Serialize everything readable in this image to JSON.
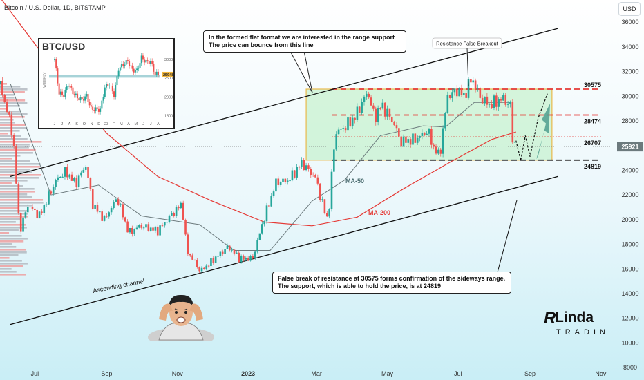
{
  "header": {
    "title": "Bitcoin / U.S. Dollar, 1D, BITSTAMP",
    "currency_button": "USD"
  },
  "chart_data": {
    "type": "line",
    "title": "Bitcoin / U.S. Dollar, 1D, BITSTAMP",
    "x_ticks": [
      "Jul",
      "Sep",
      "Nov",
      "2023",
      "Mar",
      "May",
      "Jul",
      "Sep",
      "Nov"
    ],
    "y_ticks": [
      8000,
      10000,
      12000,
      14000,
      16000,
      18000,
      20000,
      22000,
      24000,
      26000,
      28000,
      30000,
      32000,
      34000,
      36000
    ],
    "ylim": [
      7000,
      37800
    ],
    "current_price": "25921",
    "price_series": [
      {
        "x": "2022-06-01",
        "y": 31000
      },
      {
        "x": "2022-06-12",
        "y": 27000
      },
      {
        "x": "2022-06-18",
        "y": 19000
      },
      {
        "x": "2022-06-25",
        "y": 21200
      },
      {
        "x": "2022-07-05",
        "y": 20300
      },
      {
        "x": "2022-07-20",
        "y": 23300
      },
      {
        "x": "2022-07-28",
        "y": 23900
      },
      {
        "x": "2022-08-05",
        "y": 22900
      },
      {
        "x": "2022-08-14",
        "y": 24400
      },
      {
        "x": "2022-08-20",
        "y": 21200
      },
      {
        "x": "2022-08-30",
        "y": 20000
      },
      {
        "x": "2022-09-10",
        "y": 21800
      },
      {
        "x": "2022-09-20",
        "y": 18900
      },
      {
        "x": "2022-09-30",
        "y": 19500
      },
      {
        "x": "2022-10-15",
        "y": 19100
      },
      {
        "x": "2022-10-25",
        "y": 20200
      },
      {
        "x": "2022-11-05",
        "y": 21300
      },
      {
        "x": "2022-11-09",
        "y": 17500
      },
      {
        "x": "2022-11-15",
        "y": 16700
      },
      {
        "x": "2022-11-21",
        "y": 15800
      },
      {
        "x": "2022-12-05",
        "y": 17000
      },
      {
        "x": "2022-12-15",
        "y": 17800
      },
      {
        "x": "2022-12-25",
        "y": 16800
      },
      {
        "x": "2023-01-05",
        "y": 16900
      },
      {
        "x": "2023-01-14",
        "y": 19900
      },
      {
        "x": "2023-01-25",
        "y": 23000
      },
      {
        "x": "2023-02-05",
        "y": 23200
      },
      {
        "x": "2023-02-16",
        "y": 24600
      },
      {
        "x": "2023-02-28",
        "y": 23400
      },
      {
        "x": "2023-03-09",
        "y": 20300
      },
      {
        "x": "2023-03-11",
        "y": 20000
      },
      {
        "x": "2023-03-17",
        "y": 27000
      },
      {
        "x": "2023-03-25",
        "y": 27500
      },
      {
        "x": "2023-04-03",
        "y": 28300
      },
      {
        "x": "2023-04-14",
        "y": 30400
      },
      {
        "x": "2023-04-20",
        "y": 28200
      },
      {
        "x": "2023-04-26",
        "y": 29300
      },
      {
        "x": "2023-05-08",
        "y": 27600
      },
      {
        "x": "2023-05-12",
        "y": 26300
      },
      {
        "x": "2023-05-25",
        "y": 26500
      },
      {
        "x": "2023-06-05",
        "y": 27200
      },
      {
        "x": "2023-06-10",
        "y": 25800
      },
      {
        "x": "2023-06-15",
        "y": 25100
      },
      {
        "x": "2023-06-22",
        "y": 30000
      },
      {
        "x": "2023-07-01",
        "y": 30500
      },
      {
        "x": "2023-07-06",
        "y": 30000
      },
      {
        "x": "2023-07-13",
        "y": 31500
      },
      {
        "x": "2023-07-20",
        "y": 29900
      },
      {
        "x": "2023-07-28",
        "y": 29300
      },
      {
        "x": "2023-08-09",
        "y": 29800
      },
      {
        "x": "2023-08-15",
        "y": 29200
      },
      {
        "x": "2023-08-17",
        "y": 26500
      },
      {
        "x": "2023-08-20",
        "y": 26100
      }
    ],
    "ma50_series": [
      {
        "x": "2022-06-10",
        "y": 31000
      },
      {
        "x": "2022-07-15",
        "y": 22000
      },
      {
        "x": "2022-08-25",
        "y": 22800
      },
      {
        "x": "2022-10-01",
        "y": 20300
      },
      {
        "x": "2022-11-20",
        "y": 19600
      },
      {
        "x": "2022-12-20",
        "y": 17500
      },
      {
        "x": "2023-01-20",
        "y": 17500
      },
      {
        "x": "2023-02-25",
        "y": 21500
      },
      {
        "x": "2023-03-25",
        "y": 23200
      },
      {
        "x": "2023-04-25",
        "y": 26800
      },
      {
        "x": "2023-06-01",
        "y": 27600
      },
      {
        "x": "2023-06-20",
        "y": 27500
      },
      {
        "x": "2023-07-15",
        "y": 29500
      },
      {
        "x": "2023-08-15",
        "y": 29500
      }
    ],
    "ma200_series": [
      {
        "x": "2022-06-01",
        "y": 38000
      },
      {
        "x": "2022-07-15",
        "y": 32500
      },
      {
        "x": "2022-09-01",
        "y": 27000
      },
      {
        "x": "2022-10-15",
        "y": 23500
      },
      {
        "x": "2022-12-01",
        "y": 21500
      },
      {
        "x": "2023-01-15",
        "y": 19800
      },
      {
        "x": "2023-02-25",
        "y": 19500
      },
      {
        "x": "2023-04-05",
        "y": 20200
      },
      {
        "x": "2023-05-15",
        "y": 22500
      },
      {
        "x": "2023-06-25",
        "y": 24700
      },
      {
        "x": "2023-07-30",
        "y": 26500
      },
      {
        "x": "2023-08-20",
        "y": 27100
      }
    ],
    "projection_series": [
      {
        "x": "2023-08-20",
        "y": 26400
      },
      {
        "x": "2023-08-24",
        "y": 24800
      },
      {
        "x": "2023-08-28",
        "y": 26800
      },
      {
        "x": "2023-09-01",
        "y": 25100
      },
      {
        "x": "2023-09-08",
        "y": 28200
      },
      {
        "x": "2023-09-16",
        "y": 30200
      }
    ],
    "levels": [
      {
        "label": "30575",
        "value": 30575,
        "style": "red-dashed"
      },
      {
        "label": "28474",
        "value": 28474,
        "style": "red-dashed"
      },
      {
        "label": "26707",
        "value": 26707,
        "style": "red-dotted"
      },
      {
        "label": "24819",
        "value": 24819,
        "style": "black-dashed"
      }
    ],
    "range_box": {
      "x_start": "2023-02-20",
      "x_end": "2023-09-20",
      "y_low": 24819,
      "y_high": 30575,
      "color": "#e9b94a"
    },
    "channel_upper": [
      {
        "x": "2022-06-01",
        "y": 23500
      },
      {
        "x": "2023-09-25",
        "y": 35500
      }
    ],
    "channel_lower": [
      {
        "x": "2022-06-01",
        "y": 11500
      },
      {
        "x": "2023-09-25",
        "y": 23500
      }
    ],
    "labels": {
      "ma50": "MA-50",
      "ma200": "MA-200",
      "channel": "Ascending channel",
      "resistance": "Resistance False Breakout"
    },
    "callouts": {
      "top": [
        "In the formed flat format we are interested in the range support",
        "The price can bounce from this line"
      ],
      "bottom": [
        "False break of resistance at 30575 forms confirmation of the sideways range.",
        "The support, which is able to hold the price, is at 24819"
      ]
    },
    "inset": {
      "title": "BTC/USD",
      "side_label": "WEEKLY",
      "y_ticks": [
        "30000",
        "25000",
        "20000",
        "15000"
      ],
      "current": "25948",
      "x_ticks": [
        "J",
        "J",
        "A",
        "S",
        "O",
        "N",
        "D",
        "23",
        "F",
        "M",
        "A",
        "M",
        "J",
        "J",
        "A"
      ],
      "values": [
        30000,
        21000,
        20500,
        23500,
        21200,
        19800,
        19300,
        20300,
        16800,
        16700,
        16600,
        22600,
        23400,
        20500,
        27500,
        28600,
        29500,
        27200,
        27000,
        30400,
        29300,
        29400,
        26100
      ]
    },
    "logo": {
      "line1": "RLinda",
      "line2": "TRADING"
    },
    "colors": {
      "up": "#26a69a",
      "down": "#ef5350",
      "level": "#e53935",
      "ma200": "#e53935",
      "ma50": "#6c7a7d"
    }
  }
}
